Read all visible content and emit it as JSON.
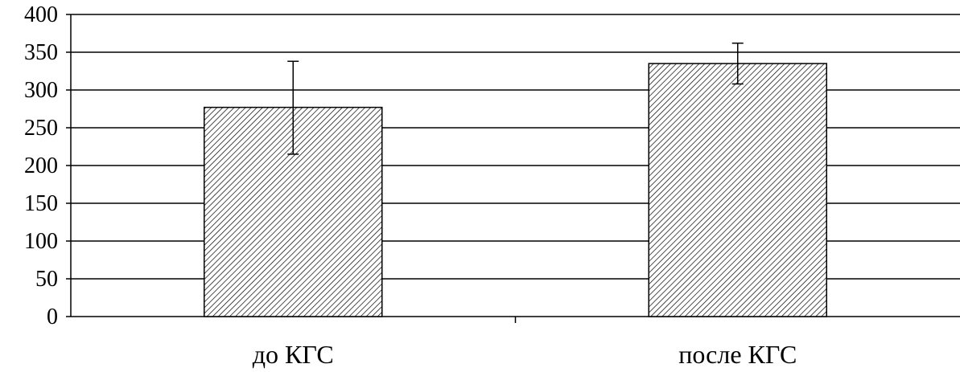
{
  "chart_data": {
    "type": "bar",
    "categories": [
      "до КГС",
      "после КГС"
    ],
    "values": [
      277,
      335
    ],
    "error_low": [
      215,
      308
    ],
    "error_high": [
      338,
      362
    ],
    "ylim": [
      0,
      400
    ],
    "yticks": [
      0,
      50,
      100,
      150,
      200,
      250,
      300,
      350,
      400
    ],
    "ytick_labels": [
      "0",
      "50",
      "100",
      "150",
      "200",
      "250",
      "300",
      "350",
      "400"
    ],
    "grid": true,
    "bar_fill": "hatched",
    "colors": {
      "bar_stroke": "#000000",
      "hatch": "#000000",
      "grid": "#000000"
    }
  }
}
